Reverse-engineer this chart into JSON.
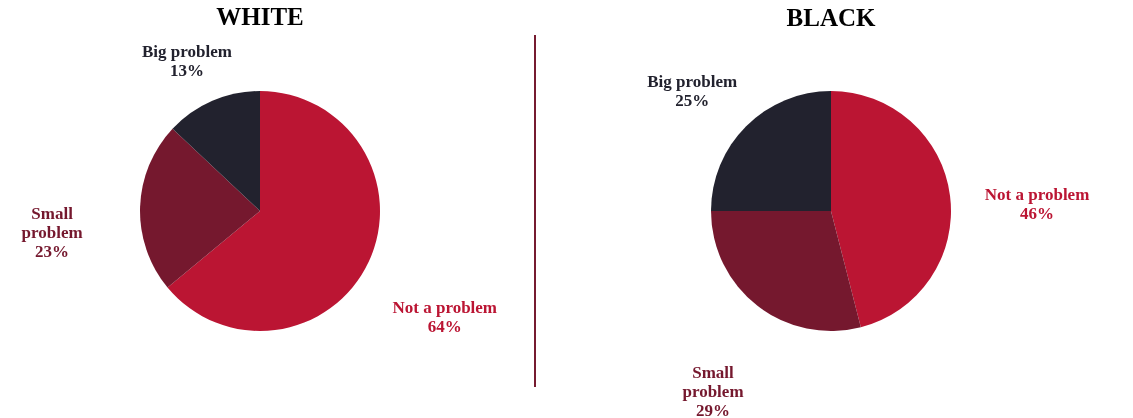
{
  "chart_data": [
    {
      "type": "pie",
      "title": "WHITE",
      "categories": [
        "Not a problem",
        "Small problem",
        "Big problem"
      ],
      "values": [
        64,
        23,
        13
      ],
      "value_labels": [
        "64%",
        "23%",
        "13%"
      ],
      "colors": [
        "#bb1533",
        "#75182e",
        "#22222e"
      ],
      "legend": false
    },
    {
      "type": "pie",
      "title": "BLACK",
      "categories": [
        "Not a problem",
        "Small problem",
        "Big problem"
      ],
      "values": [
        46,
        29,
        25
      ],
      "value_labels": [
        "46%",
        "29%",
        "25%"
      ],
      "colors": [
        "#bb1533",
        "#75182e",
        "#22222e"
      ],
      "legend": false
    }
  ]
}
